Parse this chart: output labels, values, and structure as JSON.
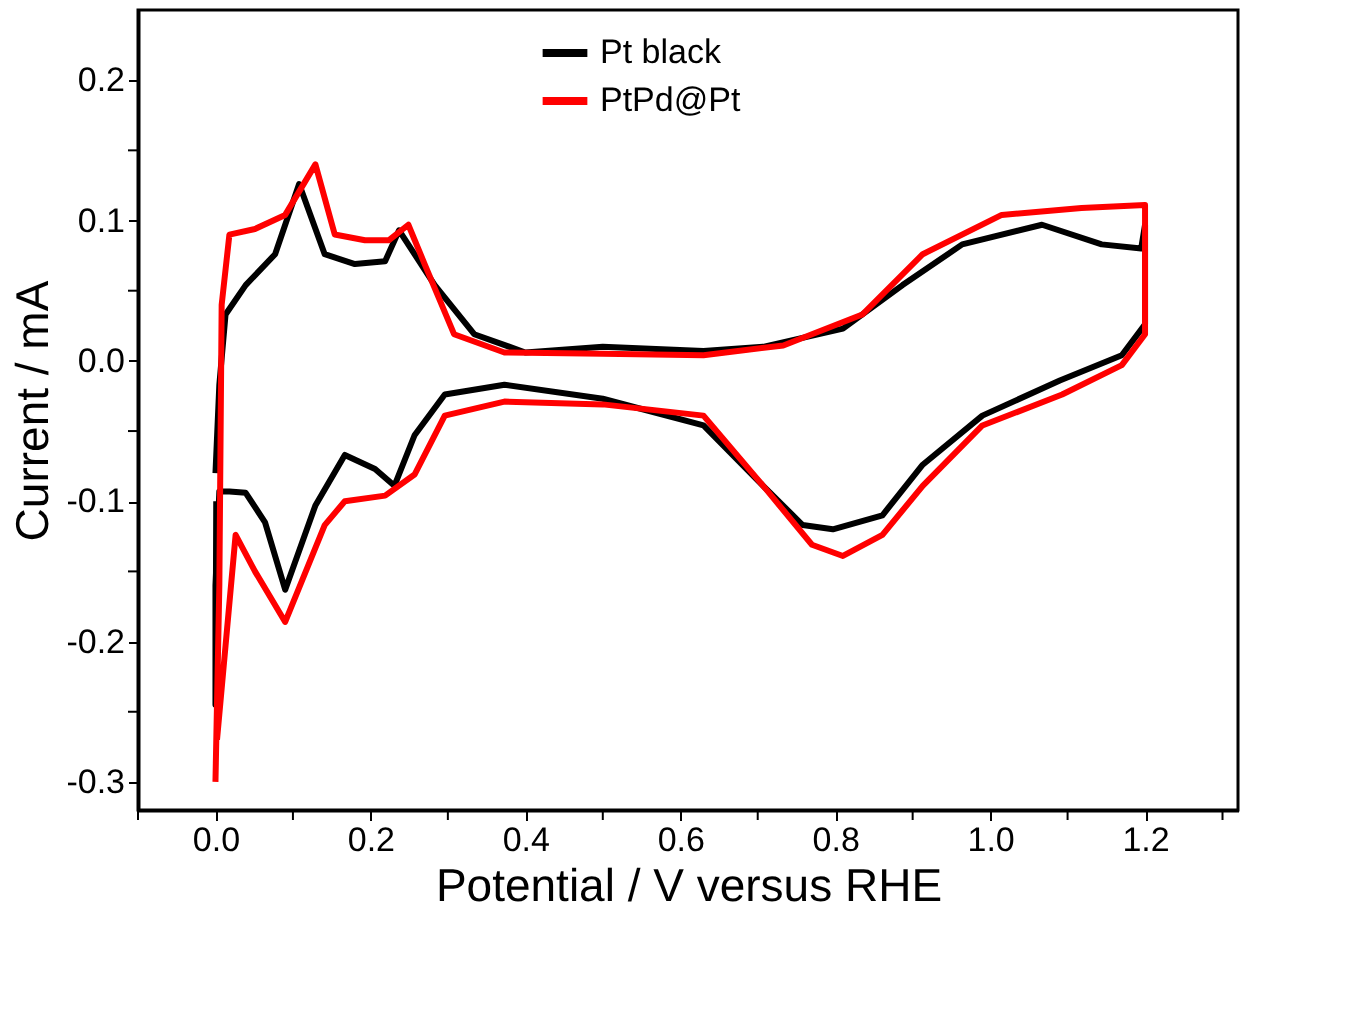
{
  "chart_data": {
    "type": "line",
    "xlabel": "Potential / V versus RHE",
    "ylabel": "Current / mA",
    "xlim": [
      -0.1,
      1.32
    ],
    "ylim": [
      -0.32,
      0.25
    ],
    "xticks": [
      {
        "value": -0.1,
        "label": null
      },
      {
        "value": 0.0,
        "label": "0.0"
      },
      {
        "value": 0.1,
        "label": null
      },
      {
        "value": 0.2,
        "label": "0.2"
      },
      {
        "value": 0.3,
        "label": null
      },
      {
        "value": 0.4,
        "label": "0.4"
      },
      {
        "value": 0.5,
        "label": null
      },
      {
        "value": 0.6,
        "label": "0.6"
      },
      {
        "value": 0.7,
        "label": null
      },
      {
        "value": 0.8,
        "label": "0.8"
      },
      {
        "value": 0.9,
        "label": null
      },
      {
        "value": 1.0,
        "label": "1.0"
      },
      {
        "value": 1.1,
        "label": null
      },
      {
        "value": 1.2,
        "label": "1.2"
      },
      {
        "value": 1.3,
        "label": null
      }
    ],
    "yticks": [
      {
        "value": -0.3,
        "label": "-0.3"
      },
      {
        "value": -0.25,
        "label": null
      },
      {
        "value": -0.2,
        "label": "-0.2"
      },
      {
        "value": -0.15,
        "label": null
      },
      {
        "value": -0.1,
        "label": "-0.1"
      },
      {
        "value": -0.05,
        "label": null
      },
      {
        "value": 0.0,
        "label": "0.0"
      },
      {
        "value": 0.05,
        "label": null
      },
      {
        "value": 0.1,
        "label": "0.1"
      },
      {
        "value": 0.15,
        "label": null
      },
      {
        "value": 0.2,
        "label": "0.2"
      }
    ],
    "grid": false,
    "legend": "top",
    "marker": "none",
    "line_style": "solid",
    "series": [
      {
        "name": "Pt black",
        "color": "#000000",
        "x": [
          0.0,
          0.005,
          0.013,
          0.039,
          0.077,
          0.108,
          0.141,
          0.18,
          0.219,
          0.237,
          0.283,
          0.334,
          0.4,
          0.5,
          0.63,
          0.707,
          0.81,
          0.887,
          0.964,
          1.067,
          1.144,
          1.195,
          1.2,
          1.2,
          1.17,
          1.09,
          0.99,
          0.913,
          0.861,
          0.797,
          0.758,
          0.707,
          0.63,
          0.5,
          0.373,
          0.296,
          0.257,
          0.231,
          0.206,
          0.167,
          0.129,
          0.09,
          0.064,
          0.039,
          0.018,
          0.005,
          0.0,
          0.0,
          0.001
        ],
        "values": [
          -0.08,
          -0.017,
          0.033,
          0.054,
          0.076,
          0.126,
          0.076,
          0.069,
          0.071,
          0.093,
          0.054,
          0.019,
          0.006,
          0.01,
          0.007,
          0.01,
          0.023,
          0.054,
          0.083,
          0.097,
          0.083,
          0.08,
          0.097,
          0.026,
          0.004,
          -0.014,
          -0.039,
          -0.074,
          -0.11,
          -0.12,
          -0.117,
          -0.089,
          -0.046,
          -0.027,
          -0.017,
          -0.024,
          -0.053,
          -0.089,
          -0.077,
          -0.067,
          -0.103,
          -0.163,
          -0.115,
          -0.094,
          -0.093,
          -0.093,
          -0.16,
          -0.245,
          -0.1
        ]
      },
      {
        "name": "PtPd@Pt",
        "color": "#ff0000",
        "x": [
          0.0,
          0.005,
          0.008,
          0.018,
          0.051,
          0.09,
          0.129,
          0.154,
          0.193,
          0.224,
          0.249,
          0.27,
          0.308,
          0.373,
          0.5,
          0.63,
          0.733,
          0.835,
          0.913,
          1.015,
          1.118,
          1.2,
          1.2,
          1.17,
          1.093,
          0.99,
          0.913,
          0.861,
          0.81,
          0.77,
          0.707,
          0.63,
          0.5,
          0.373,
          0.296,
          0.257,
          0.219,
          0.167,
          0.141,
          0.09,
          0.051,
          0.026,
          0.013,
          0.002
        ],
        "values": [
          -0.3,
          -0.16,
          0.04,
          0.09,
          0.094,
          0.104,
          0.14,
          0.09,
          0.086,
          0.086,
          0.097,
          0.069,
          0.019,
          0.006,
          0.005,
          0.004,
          0.011,
          0.033,
          0.076,
          0.104,
          0.109,
          0.111,
          0.019,
          -0.003,
          -0.024,
          -0.046,
          -0.089,
          -0.124,
          -0.139,
          -0.131,
          -0.089,
          -0.039,
          -0.031,
          -0.029,
          -0.039,
          -0.081,
          -0.096,
          -0.1,
          -0.117,
          -0.186,
          -0.15,
          -0.124,
          -0.203,
          -0.27
        ]
      }
    ]
  }
}
